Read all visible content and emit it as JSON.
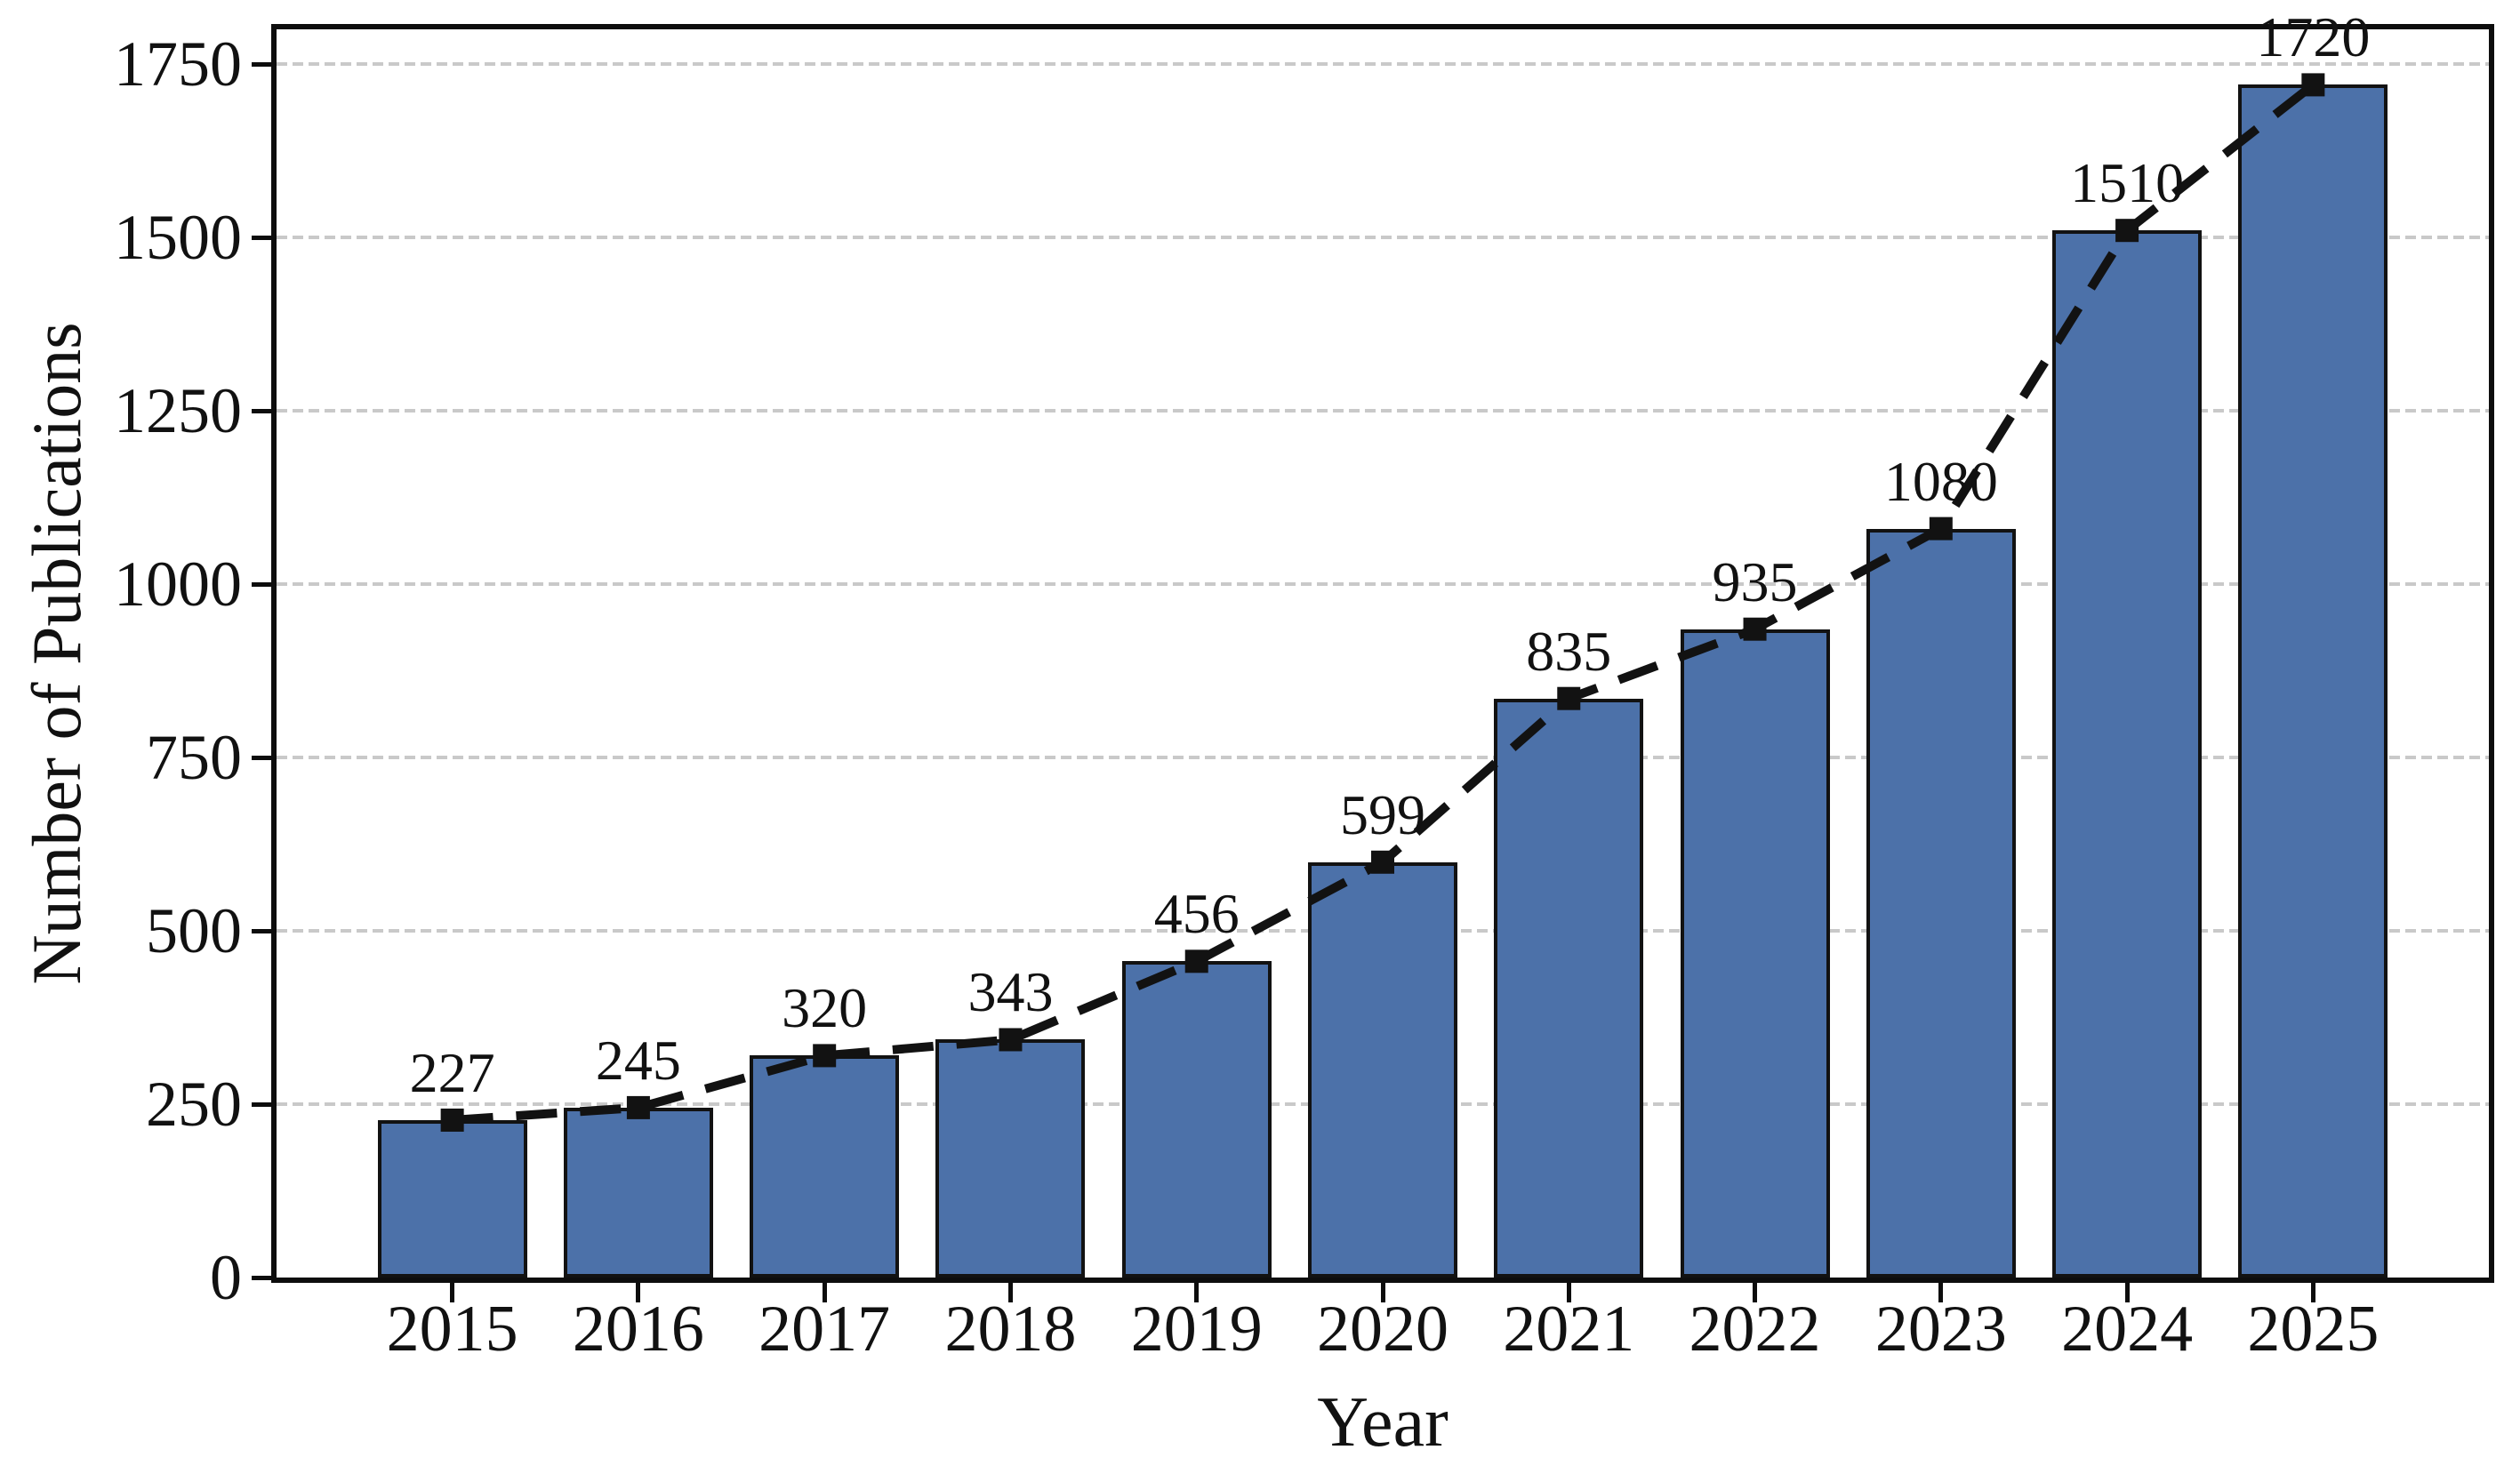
{
  "chart_data": {
    "type": "bar",
    "overlay_line": {
      "style": "dashed",
      "marker": "square",
      "color": "#121212",
      "follows": "values"
    },
    "title": "",
    "xlabel": "Year",
    "ylabel": "Number of Publications",
    "categories": [
      "2015",
      "2016",
      "2017",
      "2018",
      "2019",
      "2020",
      "2021",
      "2022",
      "2023",
      "2024",
      "2025"
    ],
    "values": [
      227,
      245,
      320,
      343,
      456,
      599,
      835,
      935,
      1080,
      1510,
      1720
    ],
    "data_labels": [
      "227",
      "245",
      "320",
      "343",
      "456",
      "599",
      "835",
      "935",
      "1080",
      "1510",
      "1720"
    ],
    "yticks": [
      "0",
      "250",
      "500",
      "750",
      "1000",
      "1250",
      "1500",
      "1750"
    ],
    "ytick_values": [
      0,
      250,
      500,
      750,
      1000,
      1250,
      1500,
      1750
    ],
    "ylim": [
      0,
      1800
    ],
    "grid": {
      "axis": "y",
      "style": "dashed",
      "color": "#c9c9c9"
    },
    "legend": null,
    "colors": {
      "bar_fill": "#4C71A9",
      "bar_edge": "#121212",
      "line": "#121212",
      "grid": "#c9c9c9",
      "text": "#111111",
      "background": "#ffffff"
    }
  }
}
